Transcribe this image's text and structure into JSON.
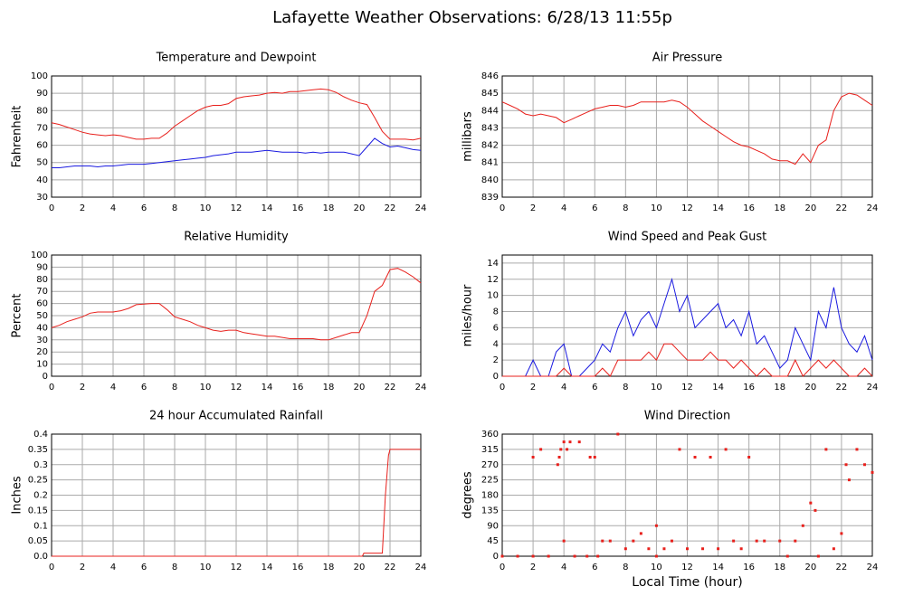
{
  "title": "Lafayette Weather Observations: 6/28/13 11:55p",
  "chart_data": [
    {
      "type": "line",
      "title": "Temperature and Dewpoint",
      "ylabel": "Fahrenheit",
      "x": [
        0,
        0.5,
        1,
        1.5,
        2,
        2.5,
        3,
        3.5,
        4,
        4.5,
        5,
        5.5,
        6,
        6.5,
        7,
        7.5,
        8,
        8.5,
        9,
        9.5,
        10,
        10.5,
        11,
        11.5,
        12,
        12.5,
        13,
        13.5,
        14,
        14.5,
        15,
        15.5,
        16,
        16.5,
        17,
        17.5,
        18,
        18.5,
        19,
        19.5,
        20,
        20.5,
        21,
        21.5,
        22,
        22.5,
        23,
        23.5,
        24
      ],
      "series": [
        {
          "color": "#e8201c",
          "values": [
            73,
            72,
            70.5,
            69,
            67.5,
            66.5,
            66,
            65.5,
            66,
            65.5,
            64.5,
            63.5,
            63.5,
            64,
            64,
            67,
            71,
            74,
            77,
            80,
            82,
            83,
            83,
            84,
            87,
            88,
            88.5,
            89,
            90,
            90.5,
            90,
            91,
            91,
            91.5,
            92,
            92.5,
            92,
            90.5,
            88,
            86,
            84.5,
            83.5,
            76,
            68,
            63.5,
            63.5,
            63.5,
            63,
            64
          ]
        },
        {
          "color": "#1a1ae0",
          "values": [
            47,
            47,
            47.5,
            48,
            48,
            48,
            47.5,
            48,
            48,
            48.5,
            49,
            49,
            49,
            49.5,
            50,
            50.5,
            51,
            51.5,
            52,
            52.5,
            53,
            54,
            54.5,
            55,
            56,
            56,
            56,
            56.5,
            57,
            56.5,
            56,
            56,
            56,
            55.5,
            56,
            55.5,
            56,
            56,
            56,
            55,
            54,
            59,
            64,
            61,
            59,
            59.5,
            58.5,
            57.5,
            57
          ]
        }
      ],
      "xlim": [
        0,
        24
      ],
      "xticks": [
        0,
        2,
        4,
        6,
        8,
        10,
        12,
        14,
        16,
        18,
        20,
        22,
        24
      ],
      "ylim": [
        30,
        100
      ],
      "yticks": [
        30,
        40,
        50,
        60,
        70,
        80,
        90,
        100
      ],
      "grid": true
    },
    {
      "type": "line",
      "title": "Air Pressure",
      "ylabel": "millibars",
      "x": [
        0,
        0.5,
        1,
        1.5,
        2,
        2.5,
        3,
        3.5,
        4,
        4.5,
        5,
        5.5,
        6,
        6.5,
        7,
        7.5,
        8,
        8.5,
        9,
        9.5,
        10,
        10.5,
        11,
        11.5,
        12,
        12.5,
        13,
        13.5,
        14,
        14.5,
        15,
        15.5,
        16,
        16.5,
        17,
        17.5,
        18,
        18.5,
        19,
        19.5,
        20,
        20.5,
        21,
        21.5,
        22,
        22.5,
        23,
        23.5,
        24
      ],
      "series": [
        {
          "color": "#e8201c",
          "values": [
            844.5,
            844.3,
            844.1,
            843.8,
            843.7,
            843.8,
            843.7,
            843.6,
            843.3,
            843.5,
            843.7,
            843.9,
            844.1,
            844.2,
            844.3,
            844.3,
            844.2,
            844.3,
            844.5,
            844.5,
            844.5,
            844.5,
            844.6,
            844.5,
            844.2,
            843.8,
            843.4,
            843.1,
            842.8,
            842.5,
            842.2,
            842,
            841.9,
            841.7,
            841.5,
            841.2,
            841.1,
            841.1,
            840.9,
            841.5,
            841,
            842,
            842.3,
            844,
            844.8,
            845,
            844.9,
            844.6,
            844.3
          ]
        }
      ],
      "xlim": [
        0,
        24
      ],
      "xticks": [
        0,
        2,
        4,
        6,
        8,
        10,
        12,
        14,
        16,
        18,
        20,
        22,
        24
      ],
      "ylim": [
        839,
        846
      ],
      "yticks": [
        839,
        840,
        841,
        842,
        843,
        844,
        845,
        846
      ],
      "grid": true
    },
    {
      "type": "line",
      "title": "Relative Humidity",
      "ylabel": "Percent",
      "x": [
        0,
        0.5,
        1,
        1.5,
        2,
        2.5,
        3,
        3.5,
        4,
        4.5,
        5,
        5.5,
        6,
        6.5,
        7,
        7.5,
        8,
        8.5,
        9,
        9.5,
        10,
        10.5,
        11,
        11.5,
        12,
        12.5,
        13,
        13.5,
        14,
        14.5,
        15,
        15.5,
        16,
        16.5,
        17,
        17.5,
        18,
        18.5,
        19,
        19.5,
        20,
        20.5,
        21,
        21.5,
        22,
        22.5,
        23,
        23.5,
        24
      ],
      "series": [
        {
          "color": "#e8201c",
          "values": [
            40,
            42,
            45,
            47,
            49,
            52,
            53,
            53,
            53,
            54,
            56,
            59,
            59.5,
            60,
            60,
            55,
            49,
            47,
            45,
            42,
            40,
            38,
            37,
            38,
            38,
            36,
            35,
            34,
            33,
            33,
            32,
            31,
            31,
            31,
            31,
            30,
            30,
            32,
            34,
            36,
            36,
            50,
            70,
            75,
            88,
            89,
            86,
            82,
            77
          ]
        }
      ],
      "xlim": [
        0,
        24
      ],
      "xticks": [
        0,
        2,
        4,
        6,
        8,
        10,
        12,
        14,
        16,
        18,
        20,
        22,
        24
      ],
      "ylim": [
        0,
        100
      ],
      "yticks": [
        0,
        10,
        20,
        30,
        40,
        50,
        60,
        70,
        80,
        90,
        100
      ],
      "grid": true
    },
    {
      "type": "line",
      "title": "Wind Speed and Peak Gust",
      "ylabel": "miles/hour",
      "x": [
        0,
        0.5,
        1,
        1.5,
        2,
        2.5,
        3,
        3.5,
        4,
        4.5,
        5,
        5.5,
        6,
        6.5,
        7,
        7.5,
        8,
        8.5,
        9,
        9.5,
        10,
        10.5,
        11,
        11.5,
        12,
        12.5,
        13,
        13.5,
        14,
        14.5,
        15,
        15.5,
        16,
        16.5,
        17,
        17.5,
        18,
        18.5,
        19,
        19.5,
        20,
        20.5,
        21,
        21.5,
        22,
        22.5,
        23,
        23.5,
        24
      ],
      "series": [
        {
          "color": "#1a1ae0",
          "values": [
            0,
            0,
            0,
            0,
            2,
            0,
            0,
            3,
            4,
            0,
            0,
            1,
            2,
            4,
            3,
            6,
            8,
            5,
            7,
            8,
            6,
            9,
            12,
            8,
            10,
            6,
            7,
            8,
            9,
            6,
            7,
            5,
            8,
            4,
            5,
            3,
            1,
            2,
            6,
            4,
            2,
            8,
            6,
            11,
            6,
            4,
            3,
            5,
            2
          ]
        },
        {
          "color": "#e8201c",
          "values": [
            0,
            0,
            0,
            0,
            0,
            0,
            0,
            0,
            1,
            0,
            0,
            0,
            0,
            1,
            0,
            2,
            2,
            2,
            2,
            3,
            2,
            4,
            4,
            3,
            2,
            2,
            2,
            3,
            2,
            2,
            1,
            2,
            1,
            0,
            1,
            0,
            0,
            0,
            2,
            0,
            1,
            2,
            1,
            2,
            1,
            0,
            0,
            1,
            0
          ]
        }
      ],
      "xlim": [
        0,
        24
      ],
      "xticks": [
        0,
        2,
        4,
        6,
        8,
        10,
        12,
        14,
        16,
        18,
        20,
        22,
        24
      ],
      "ylim": [
        0,
        15
      ],
      "yticks": [
        0,
        2,
        4,
        6,
        8,
        10,
        12,
        14
      ],
      "grid": true
    },
    {
      "type": "line",
      "title": "24 hour Accumulated Rainfall",
      "ylabel": "Inches",
      "x": [
        0,
        20.2,
        20.3,
        21.5,
        21.7,
        21.9,
        22,
        24
      ],
      "series": [
        {
          "color": "#e8201c",
          "values": [
            0,
            0,
            0.01,
            0.01,
            0.2,
            0.33,
            0.35,
            0.35
          ]
        }
      ],
      "xlim": [
        0,
        24
      ],
      "xticks": [
        0,
        2,
        4,
        6,
        8,
        10,
        12,
        14,
        16,
        18,
        20,
        22,
        24
      ],
      "ylim": [
        0,
        0.4
      ],
      "yticks": [
        {
          "value": 0,
          "label": "0.0"
        },
        0.05,
        0.1,
        0.15,
        0.2,
        0.25,
        0.3,
        0.35,
        0.4
      ],
      "grid": true
    },
    {
      "type": "scatter",
      "title": "Wind Direction",
      "ylabel": "degrees",
      "xlabel": "Local Time (hour)",
      "x": [
        0,
        1,
        2,
        2,
        2.5,
        3,
        3.6,
        3.7,
        3.8,
        4,
        4,
        4.2,
        4.4,
        4.7,
        5,
        5.5,
        5.7,
        6,
        6.2,
        6.5,
        7,
        7.5,
        8,
        8.5,
        9,
        9.5,
        10,
        10,
        10.5,
        11,
        11.5,
        12,
        12.5,
        13,
        13.5,
        14,
        14.5,
        15,
        15.5,
        16,
        16.5,
        17,
        18,
        18.5,
        19,
        19.5,
        20,
        20.3,
        20.5,
        21,
        21.5,
        22,
        22.3,
        22.5,
        23,
        23.5,
        24
      ],
      "series": [
        {
          "color": "#e8201c",
          "values": [
            0,
            0,
            0,
            292,
            315,
            0,
            270,
            292,
            315,
            45,
            337,
            315,
            337,
            0,
            337,
            0,
            292,
            292,
            0,
            45,
            45,
            360,
            22,
            45,
            67,
            22,
            0,
            90,
            22,
            45,
            315,
            22,
            292,
            22,
            292,
            22,
            315,
            45,
            22,
            292,
            45,
            45,
            45,
            0,
            45,
            90,
            157,
            135,
            0,
            315,
            22,
            67,
            270,
            225,
            315,
            270,
            247
          ]
        }
      ],
      "xlim": [
        0,
        24
      ],
      "xticks": [
        0,
        2,
        4,
        6,
        8,
        10,
        12,
        14,
        16,
        18,
        20,
        22,
        24
      ],
      "ylim": [
        0,
        360
      ],
      "yticks": [
        0,
        45,
        90,
        135,
        180,
        225,
        270,
        315,
        360
      ],
      "grid": true
    }
  ]
}
